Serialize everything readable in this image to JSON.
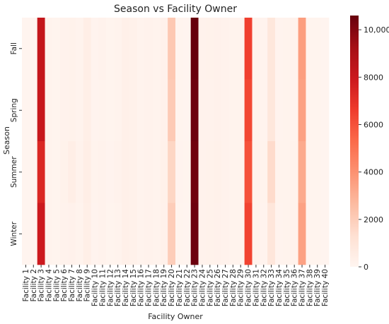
{
  "chart_data": {
    "type": "heatmap",
    "title": "Season vs Facility Owner",
    "xlabel": "Facility Owner",
    "ylabel": "Season",
    "rows": [
      "Fall",
      "Spring",
      "Summer",
      "Winter"
    ],
    "columns": [
      "Facility 1",
      "Facility 2",
      "Facility 3",
      "Facility 4",
      "Facility 5",
      "Facility 6",
      "Facility 7",
      "Facility 8",
      "Facility 9",
      "Facility 10",
      "Facility 11",
      "Facility 12",
      "Facility 13",
      "Facility 14",
      "Facility 15",
      "Facility 16",
      "Facility 17",
      "Facility 18",
      "Facility 19",
      "Facility 20",
      "Facility 21",
      "Facility 22",
      "Facility 23",
      "Facility 24",
      "Facility 25",
      "Facility 26",
      "Facility 27",
      "Facility 28",
      "Facility 29",
      "Facility 30",
      "Facility 31",
      "Facility 32",
      "Facility 33",
      "Facility 34",
      "Facility 35",
      "Facility 36",
      "Facility 37",
      "Facility 38",
      "Facility 39",
      "Facility 40"
    ],
    "values": [
      [
        50,
        60,
        8200,
        120,
        80,
        180,
        220,
        150,
        420,
        110,
        160,
        90,
        140,
        300,
        260,
        140,
        170,
        120,
        240,
        2200,
        90,
        60,
        10600,
        180,
        200,
        240,
        160,
        140,
        130,
        6500,
        180,
        110,
        900,
        110,
        120,
        160,
        3600,
        80,
        70,
        40
      ],
      [
        50,
        60,
        8100,
        120,
        80,
        170,
        210,
        140,
        400,
        110,
        150,
        90,
        140,
        290,
        250,
        140,
        160,
        120,
        230,
        2100,
        90,
        60,
        10500,
        180,
        190,
        230,
        160,
        140,
        130,
        6300,
        170,
        110,
        880,
        110,
        120,
        150,
        3500,
        80,
        70,
        40
      ],
      [
        50,
        60,
        7400,
        130,
        90,
        200,
        420,
        160,
        430,
        120,
        180,
        100,
        160,
        320,
        280,
        150,
        180,
        130,
        260,
        1700,
        100,
        70,
        10400,
        190,
        220,
        260,
        170,
        150,
        140,
        6000,
        200,
        120,
        1500,
        120,
        130,
        170,
        3200,
        90,
        80,
        40
      ],
      [
        50,
        60,
        7900,
        120,
        80,
        180,
        230,
        150,
        410,
        110,
        160,
        90,
        150,
        300,
        260,
        140,
        170,
        120,
        240,
        2000,
        90,
        60,
        10500,
        180,
        200,
        240,
        160,
        140,
        130,
        6400,
        180,
        110,
        920,
        110,
        120,
        160,
        3500,
        80,
        70,
        40
      ]
    ],
    "vmin": 0,
    "vmax": 10600,
    "colorbar_ticks": [
      0,
      2000,
      4000,
      6000,
      8000,
      10000
    ],
    "colorbar_tick_labels": [
      "0",
      "2000",
      "4000",
      "6000",
      "8000",
      "10,000"
    ],
    "colormap": "Reds",
    "colors": {
      "low": "#fff5f0",
      "mid": "#fb6a4a",
      "high": "#67000d"
    }
  }
}
